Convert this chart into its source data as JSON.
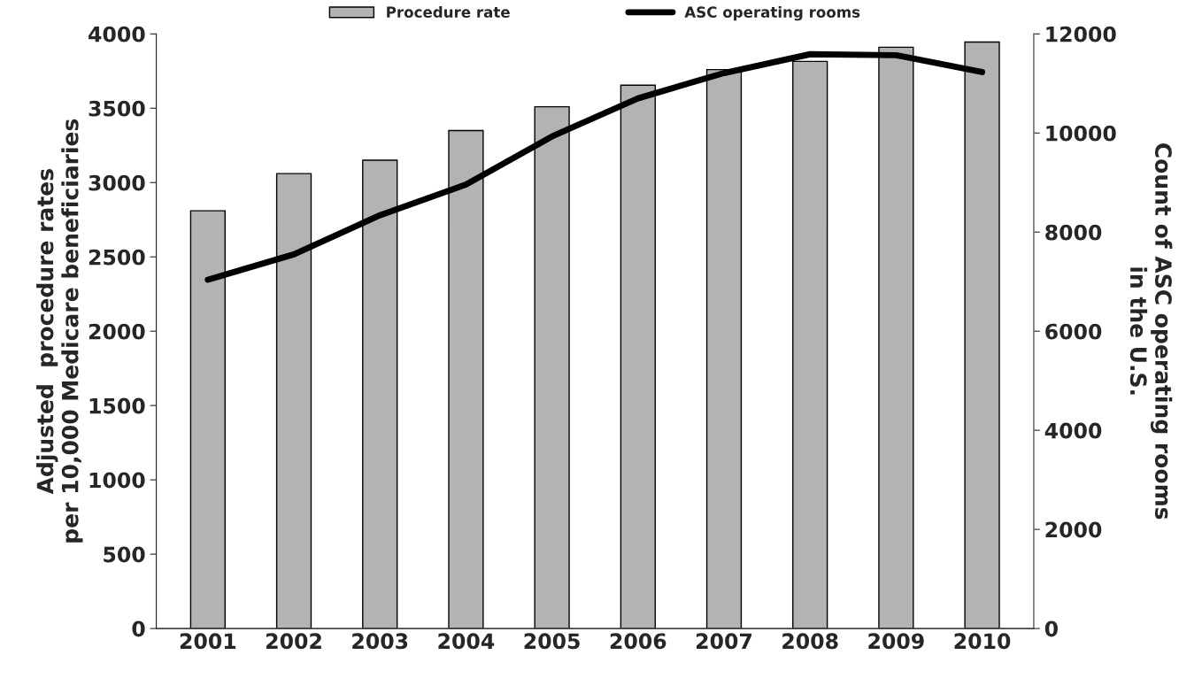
{
  "chart_data": {
    "type": "bar",
    "categories": [
      "2001",
      "2002",
      "2003",
      "2004",
      "2005",
      "2006",
      "2007",
      "2008",
      "2009",
      "2010"
    ],
    "series": [
      {
        "name": "Procedure rate",
        "color": "#b3b3b3",
        "values": [
          2810,
          3060,
          3150,
          3350,
          3510,
          3655,
          3760,
          3815,
          3910,
          3945
        ]
      },
      {
        "name": "ASC operating rooms",
        "type": "line",
        "axis": "y2",
        "color": "#000000",
        "values": [
          7040,
          7550,
          8340,
          8960,
          9930,
          10700,
          11210,
          11590,
          11570,
          11230
        ]
      }
    ],
    "ylabel": "Adjusted  procedure rates\nper 10,000 Medicare beneficiaries",
    "y2label": "Count of ASC operating rooms\nin the U.S.",
    "ylim": [
      0,
      4000
    ],
    "yticks": [
      0,
      500,
      1000,
      1500,
      2000,
      2500,
      3000,
      3500,
      4000
    ],
    "y2lim": [
      0,
      12000
    ],
    "y2ticks": [
      0,
      2000,
      4000,
      6000,
      8000,
      10000,
      12000
    ],
    "grid": false,
    "legend": "top",
    "marker": "none",
    "line_style": "solid"
  }
}
